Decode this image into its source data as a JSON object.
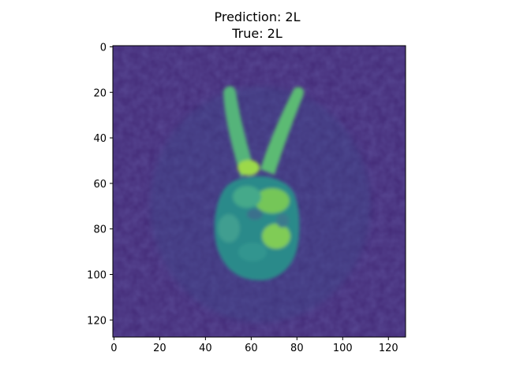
{
  "chart_data": {
    "type": "heatmap",
    "title_lines": [
      "Prediction: 2L",
      "True: 2L"
    ],
    "xlabel": "",
    "ylabel": "",
    "xlim": [
      -0.5,
      127.5
    ],
    "ylim": [
      127.5,
      -0.5
    ],
    "x_ticks": [
      0,
      20,
      40,
      60,
      80,
      100,
      120
    ],
    "y_ticks": [
      0,
      20,
      40,
      60,
      80,
      100,
      120
    ],
    "grid": false,
    "colormap": "viridis",
    "image_size": [
      128,
      128
    ],
    "content": "grayscale photo of a hand making a V (two-finger) sign"
  }
}
